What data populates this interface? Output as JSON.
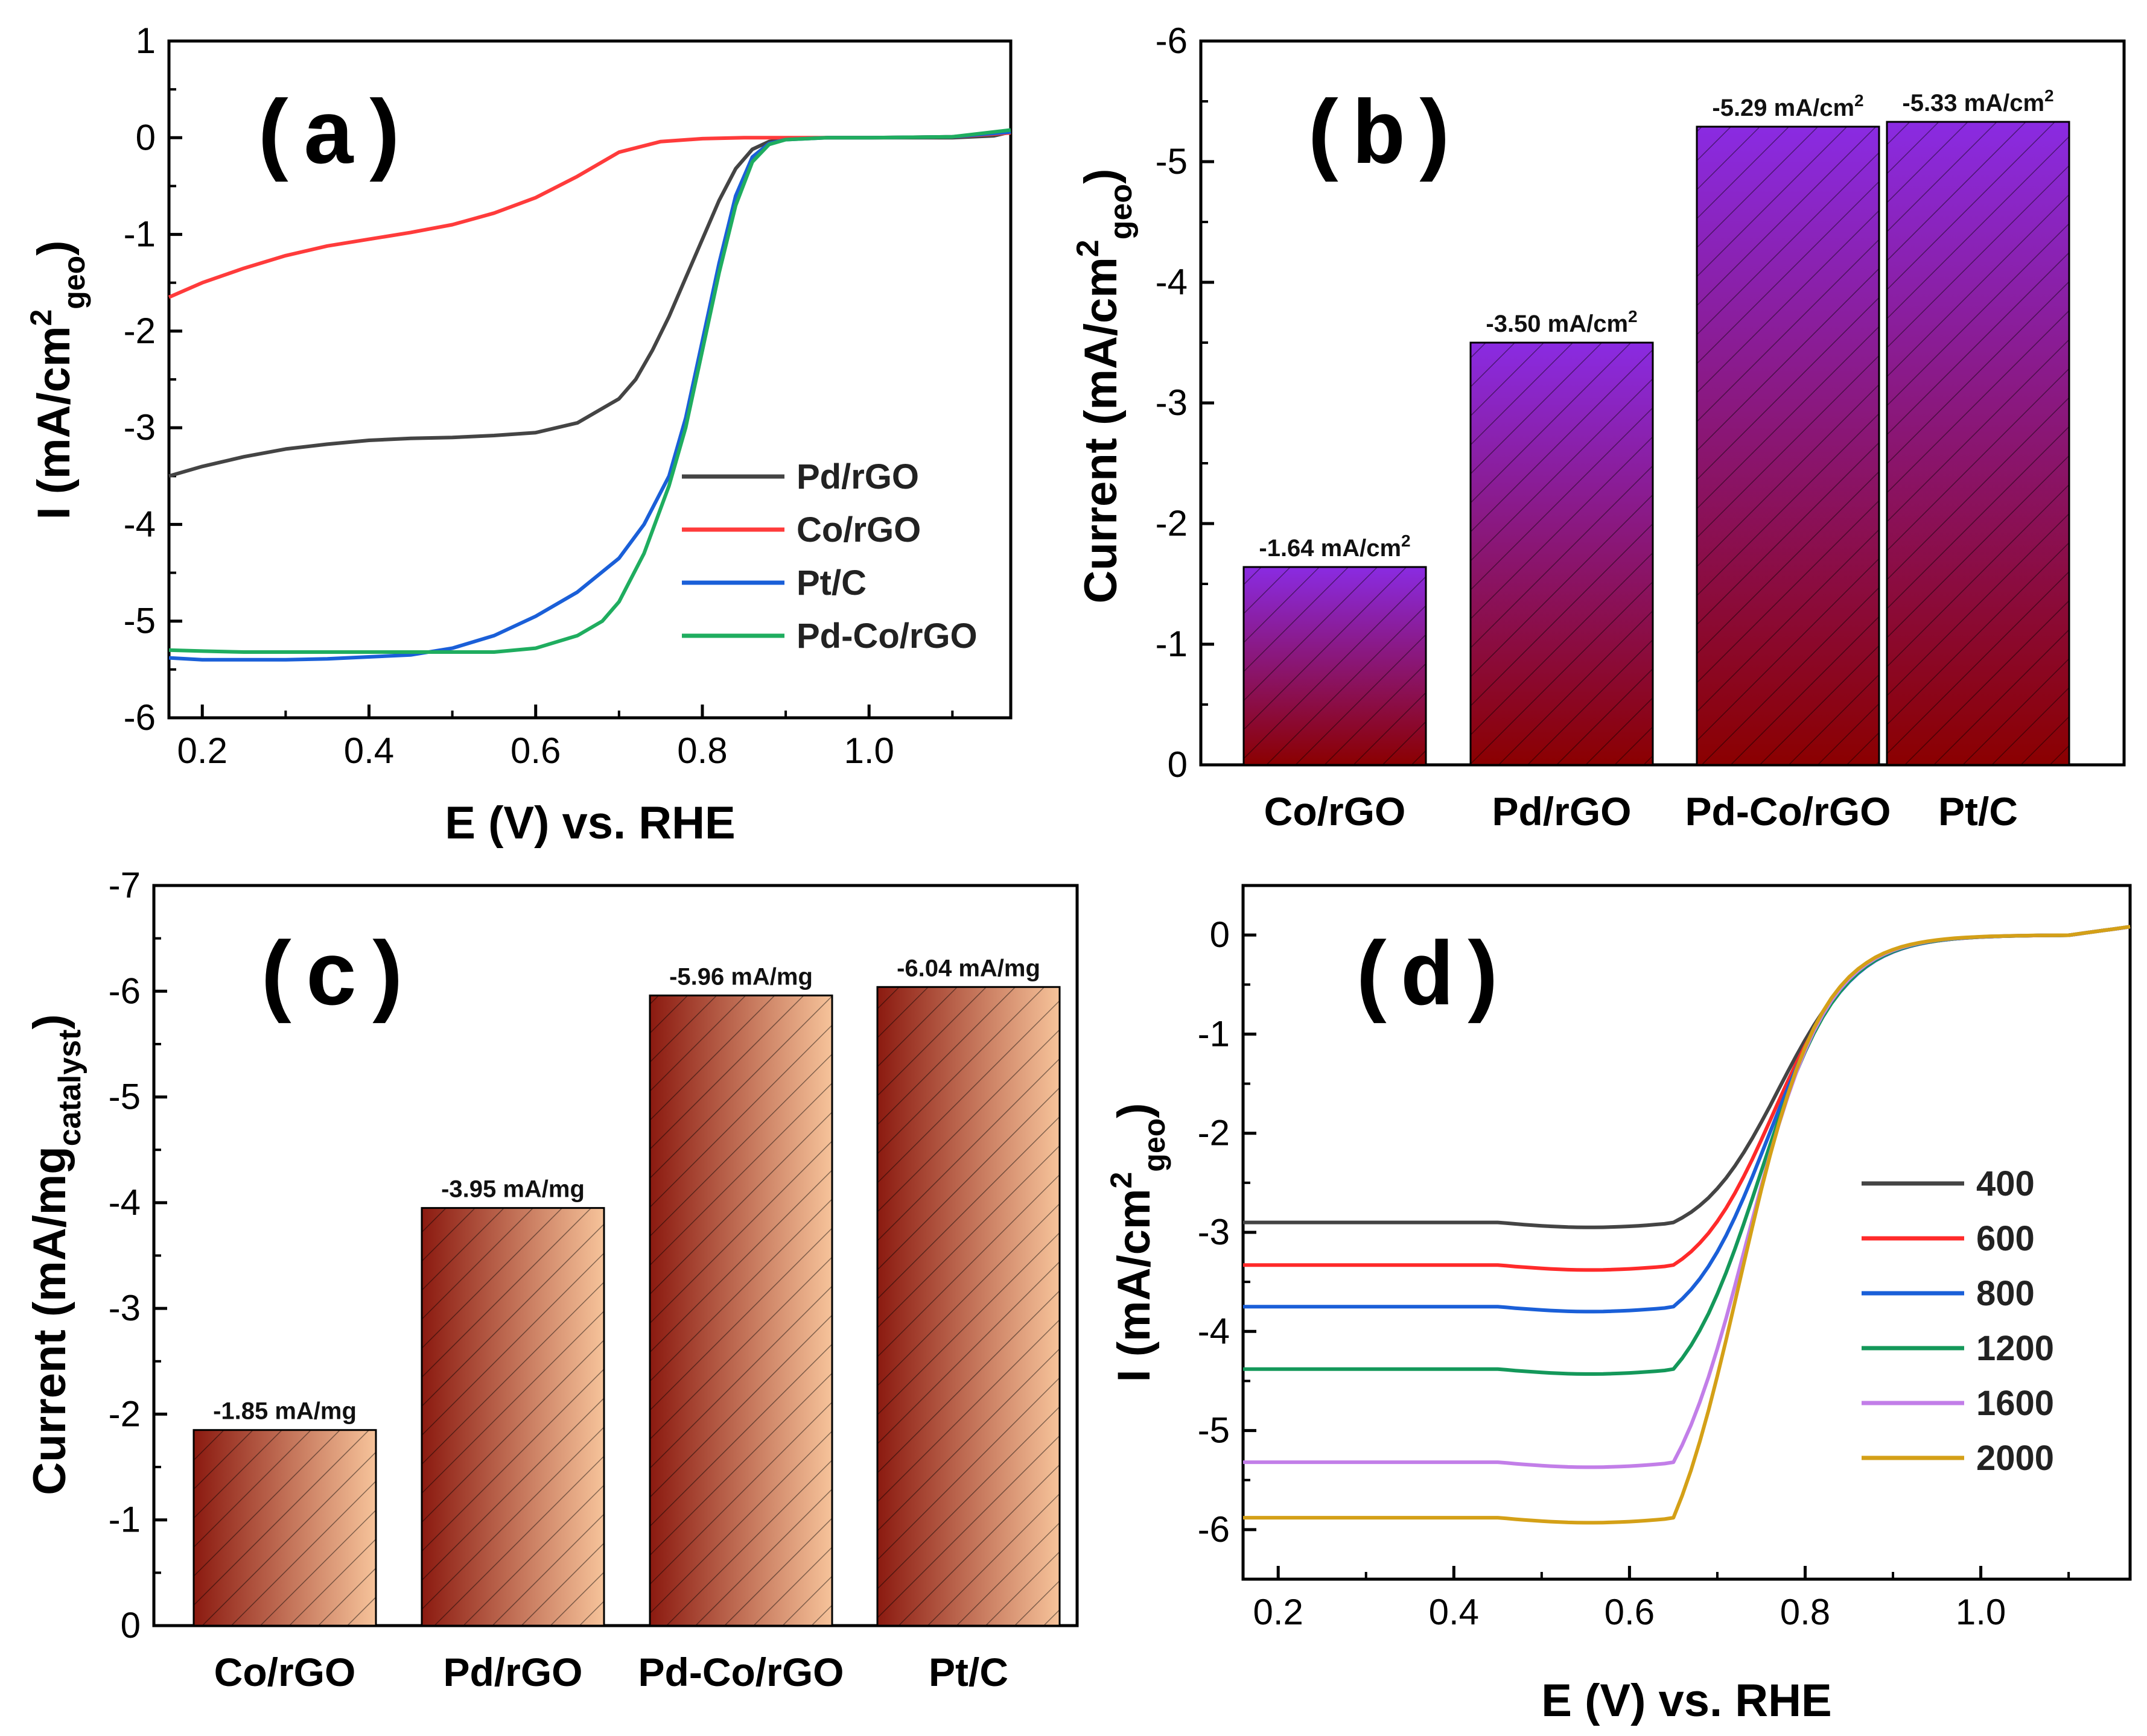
{
  "chart_data": [
    {
      "panel": "(a)",
      "type": "line",
      "xlabel": "E (V) vs. RHE",
      "ylabel": "I (mA/cm",
      "ylabel_sup": "2",
      "ylabel_sub": "geo",
      "ylabel_close": ")",
      "xlim": [
        0.16,
        1.17
      ],
      "ylim": [
        -6,
        1
      ],
      "xticks": [
        "0.2",
        "0.4",
        "0.6",
        "0.8",
        "1.0"
      ],
      "yticks": [
        "1",
        "0",
        "-1",
        "-2",
        "-3",
        "-4",
        "-5",
        "-6"
      ],
      "series": [
        {
          "name": "Pd/rGO",
          "color": "#444444",
          "x": [
            0.16,
            0.2,
            0.25,
            0.3,
            0.35,
            0.4,
            0.45,
            0.5,
            0.55,
            0.6,
            0.65,
            0.7,
            0.72,
            0.74,
            0.76,
            0.78,
            0.8,
            0.82,
            0.84,
            0.86,
            0.88,
            0.9,
            0.95,
            1.0,
            1.05,
            1.1,
            1.15,
            1.17
          ],
          "y": [
            -3.5,
            -3.4,
            -3.3,
            -3.22,
            -3.17,
            -3.13,
            -3.11,
            -3.1,
            -3.08,
            -3.05,
            -2.95,
            -2.7,
            -2.5,
            -2.2,
            -1.85,
            -1.45,
            -1.05,
            -0.65,
            -0.32,
            -0.12,
            -0.04,
            -0.01,
            0,
            0,
            0,
            0,
            0.02,
            0.06
          ]
        },
        {
          "name": "Co/rGO",
          "color": "#ff3b3b",
          "x": [
            0.16,
            0.2,
            0.25,
            0.3,
            0.35,
            0.4,
            0.45,
            0.5,
            0.55,
            0.6,
            0.65,
            0.7,
            0.75,
            0.8,
            0.85,
            0.9,
            1.0,
            1.1,
            1.17
          ],
          "y": [
            -1.65,
            -1.5,
            -1.35,
            -1.22,
            -1.12,
            -1.05,
            -0.98,
            -0.9,
            -0.78,
            -0.62,
            -0.4,
            -0.15,
            -0.04,
            -0.01,
            0,
            0,
            0,
            0.01,
            0.05
          ]
        },
        {
          "name": "Pt/C",
          "color": "#1a5fd8",
          "x": [
            0.16,
            0.2,
            0.25,
            0.3,
            0.35,
            0.4,
            0.45,
            0.5,
            0.55,
            0.6,
            0.65,
            0.7,
            0.73,
            0.76,
            0.78,
            0.8,
            0.82,
            0.84,
            0.86,
            0.88,
            0.9,
            0.95,
            1.0,
            1.1,
            1.17
          ],
          "y": [
            -5.38,
            -5.4,
            -5.4,
            -5.4,
            -5.39,
            -5.37,
            -5.35,
            -5.28,
            -5.15,
            -4.95,
            -4.7,
            -4.35,
            -4.0,
            -3.5,
            -2.9,
            -2.1,
            -1.3,
            -0.6,
            -0.2,
            -0.06,
            -0.02,
            0,
            0,
            0.01,
            0.06
          ]
        },
        {
          "name": "Pd-Co/rGO",
          "color": "#1fad5f",
          "x": [
            0.16,
            0.2,
            0.25,
            0.3,
            0.35,
            0.4,
            0.45,
            0.5,
            0.55,
            0.6,
            0.65,
            0.68,
            0.7,
            0.73,
            0.76,
            0.78,
            0.8,
            0.82,
            0.84,
            0.86,
            0.88,
            0.9,
            0.95,
            1.0,
            1.1,
            1.17
          ],
          "y": [
            -5.3,
            -5.31,
            -5.32,
            -5.32,
            -5.32,
            -5.32,
            -5.32,
            -5.32,
            -5.32,
            -5.28,
            -5.15,
            -5.0,
            -4.8,
            -4.3,
            -3.6,
            -3.0,
            -2.2,
            -1.4,
            -0.7,
            -0.25,
            -0.07,
            -0.02,
            0,
            0,
            0.01,
            0.08
          ]
        }
      ]
    },
    {
      "panel": "(b)",
      "type": "bar",
      "ylabel": "Current (mA/cm",
      "ylabel_sup": "2",
      "ylabel_sub": "geo",
      "ylabel_close": ")",
      "categories": [
        "Co/rGO",
        "Pd/rGO",
        "Pd-Co/rGO",
        "Pt/C"
      ],
      "values": [
        -1.64,
        -3.5,
        -5.29,
        -5.33
      ],
      "labels": [
        "-1.64 mA/cm",
        "-3.50 mA/cm",
        "-5.29 mA/cm",
        "-5.33 mA/cm"
      ],
      "label_sup": "2",
      "ylim": [
        0,
        -6
      ],
      "yticks": [
        "0",
        "-1",
        "-2",
        "-3",
        "-4",
        "-5",
        "-6"
      ],
      "color_top": "#8a2be2",
      "color_bottom": "#8b0000"
    },
    {
      "panel": "(c)",
      "type": "bar",
      "ylabel": "Current (mA/mg",
      "ylabel_sub": "catalyst",
      "ylabel_close": ")",
      "categories": [
        "Co/rGO",
        "Pd/rGO",
        "Pd-Co/rGO",
        "Pt/C"
      ],
      "values": [
        -1.85,
        -3.95,
        -5.96,
        -6.04
      ],
      "labels": [
        "-1.85 mA/mg",
        "-3.95 mA/mg",
        "-5.96 mA/mg",
        "-6.04 mA/mg"
      ],
      "ylim": [
        0,
        -7
      ],
      "yticks": [
        "0",
        "-1",
        "-2",
        "-3",
        "-4",
        "-5",
        "-6",
        "-7"
      ],
      "color_left": "#8b1a10",
      "color_right": "#f6c39a"
    },
    {
      "panel": "(d)",
      "type": "line",
      "xlabel": "E (V) vs. RHE",
      "ylabel": "I (mA/cm",
      "ylabel_sup": "2",
      "ylabel_sub": "geo",
      "ylabel_close": ")",
      "xlim": [
        0.16,
        1.17
      ],
      "ylim": [
        -6.5,
        0.5
      ],
      "xticks": [
        "0.2",
        "0.4",
        "0.6",
        "0.8",
        "1.0"
      ],
      "yticks": [
        "0",
        "-1",
        "-2",
        "-3",
        "-4",
        "-5",
        "-6"
      ],
      "series": [
        {
          "name": "400",
          "color": "#444444",
          "plateau": -2.9
        },
        {
          "name": "600",
          "color": "#ff2a2a",
          "plateau": -3.33
        },
        {
          "name": "800",
          "color": "#1a5fd8",
          "plateau": -3.75
        },
        {
          "name": "1200",
          "color": "#14985a",
          "plateau": -4.38
        },
        {
          "name": "1600",
          "color": "#c27ee8",
          "plateau": -5.32
        },
        {
          "name": "2000",
          "color": "#d4a017",
          "plateau": -5.88
        }
      ]
    }
  ]
}
